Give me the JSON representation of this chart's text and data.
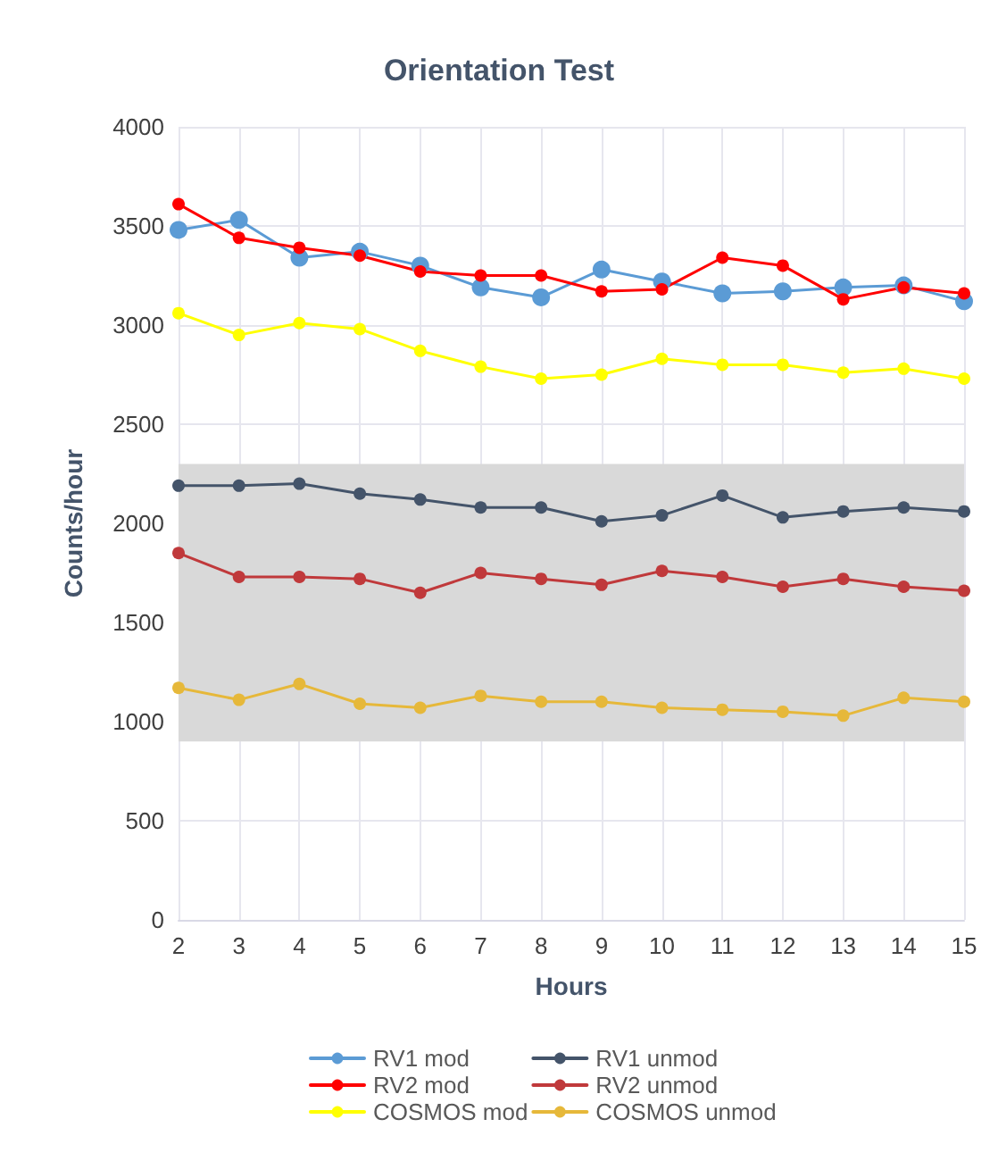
{
  "chart_data": {
    "type": "line",
    "title": "Orientation Test",
    "xlabel": "Hours",
    "ylabel": "Counts/hour",
    "categories": [
      "2",
      "3",
      "4",
      "5",
      "6",
      "7",
      "8",
      "9",
      "10",
      "11",
      "12",
      "13",
      "14",
      "15"
    ],
    "series": [
      {
        "name": "RV1 mod",
        "color": "#5b9bd5",
        "values": [
          3480,
          3530,
          3340,
          3370,
          3300,
          3190,
          3140,
          3280,
          3220,
          3160,
          3170,
          3190,
          3200,
          3120
        ]
      },
      {
        "name": "RV2 mod",
        "color": "#ff0000",
        "values": [
          3610,
          3440,
          3390,
          3350,
          3270,
          3250,
          3250,
          3170,
          3180,
          3340,
          3300,
          3130,
          3190,
          3160
        ]
      },
      {
        "name": "COSMOS mod",
        "color": "#ffff00",
        "values": [
          3060,
          2950,
          3010,
          2980,
          2870,
          2790,
          2730,
          2750,
          2830,
          2800,
          2800,
          2760,
          2780,
          2730
        ]
      },
      {
        "name": "RV1 unmod",
        "color": "#44546a",
        "values": [
          2190,
          2190,
          2200,
          2150,
          2120,
          2080,
          2080,
          2010,
          2040,
          2140,
          2030,
          2060,
          2080,
          2060
        ]
      },
      {
        "name": "RV2 unmod",
        "color": "#c0393b",
        "values": [
          1850,
          1730,
          1730,
          1720,
          1650,
          1750,
          1720,
          1690,
          1760,
          1730,
          1680,
          1720,
          1680,
          1660
        ]
      },
      {
        "name": "COSMOS unmod",
        "color": "#e6b83a",
        "values": [
          1170,
          1110,
          1190,
          1090,
          1070,
          1130,
          1100,
          1100,
          1070,
          1060,
          1050,
          1030,
          1120,
          1100
        ]
      }
    ],
    "ylim": [
      0,
      4000
    ],
    "yticks": [
      0,
      500,
      1000,
      1500,
      2000,
      2500,
      3000,
      3500,
      4000
    ],
    "bands": [
      {
        "axis": "y",
        "from": 900,
        "to": 2300,
        "color": "#d9d9d9"
      }
    ],
    "grid": true,
    "legend": "bottom",
    "marker": "circle",
    "line_style": "solid"
  }
}
